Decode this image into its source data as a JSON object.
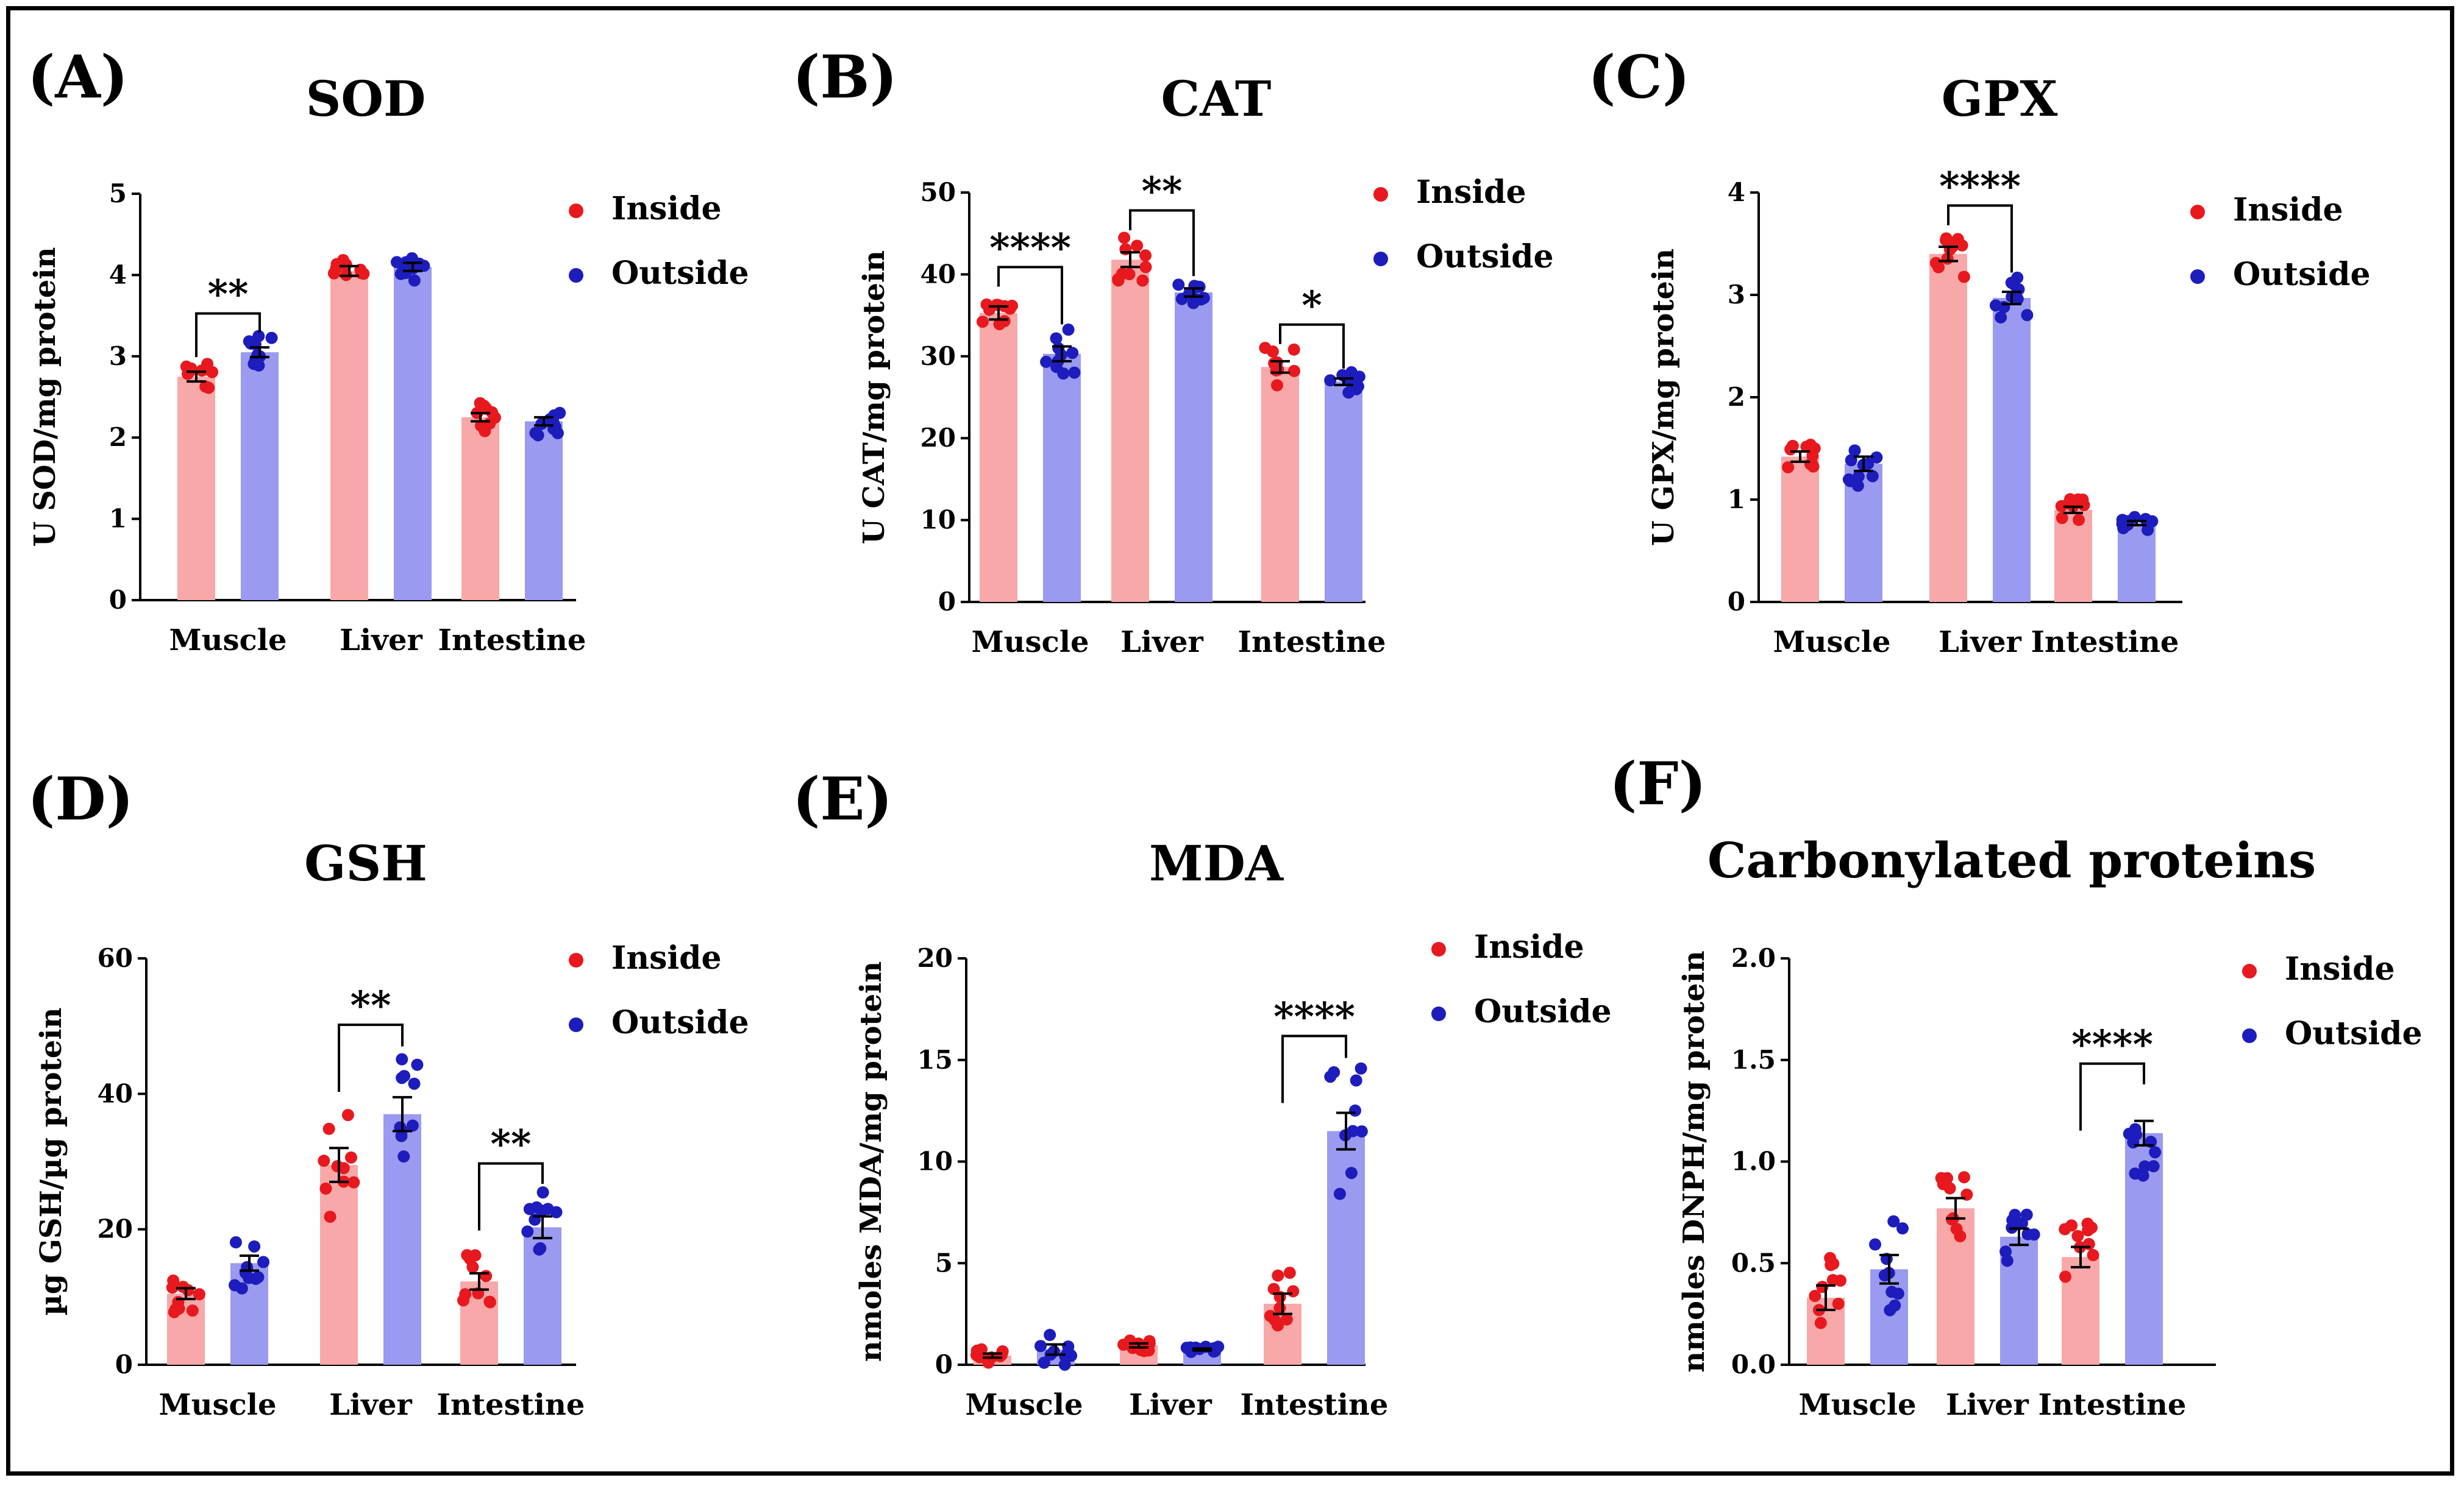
{
  "legend": {
    "inside": "Inside",
    "outside": "Outside"
  },
  "colors": {
    "inside_bar": "#f8a8a8",
    "inside_dot": "#e8191e",
    "outside_bar": "#9a9af0",
    "outside_dot": "#1d1dbd"
  },
  "chart_data": [
    {
      "id": "A",
      "panel_label": "(A)",
      "type": "bar",
      "title": "SOD",
      "ylabel": "U SOD/mg protein",
      "ylim": [
        0,
        5
      ],
      "yticks": [
        "0",
        "1",
        "2",
        "3",
        "4",
        "5"
      ],
      "categories": [
        "Muscle",
        "Liver",
        "Intestine"
      ],
      "series": [
        {
          "name": "Inside",
          "values": [
            2.75,
            4.05,
            2.25
          ],
          "sem": [
            0.06,
            0.06,
            0.05
          ]
        },
        {
          "name": "Outside",
          "values": [
            3.05,
            4.1,
            2.2
          ],
          "sem": [
            0.06,
            0.05,
            0.05
          ]
        }
      ],
      "significance": [
        {
          "category": "Muscle",
          "label": "**"
        }
      ]
    },
    {
      "id": "B",
      "panel_label": "(B)",
      "type": "bar",
      "title": "CAT",
      "ylabel": "U CAT/mg protein",
      "ylim": [
        0,
        50
      ],
      "yticks": [
        "0",
        "10",
        "20",
        "30",
        "40",
        "50"
      ],
      "categories": [
        "Muscle",
        "Liver",
        "Intestine"
      ],
      "series": [
        {
          "name": "Inside",
          "values": [
            35.3,
            41.8,
            28.7
          ],
          "sem": [
            0.8,
            0.9,
            0.7
          ]
        },
        {
          "name": "Outside",
          "values": [
            30.3,
            37.8,
            26.9
          ],
          "sem": [
            0.9,
            0.5,
            0.4
          ]
        }
      ],
      "significance": [
        {
          "category": "Muscle",
          "label": "****"
        },
        {
          "category": "Liver",
          "label": "**"
        },
        {
          "category": "Intestine",
          "label": "*"
        }
      ]
    },
    {
      "id": "C",
      "panel_label": "(C)",
      "type": "bar",
      "title": "GPX",
      "ylabel": "U GPX/mg protein",
      "ylim": [
        0,
        4
      ],
      "yticks": [
        "0",
        "1",
        "2",
        "3",
        "4"
      ],
      "categories": [
        "Muscle",
        "Liver",
        "Intestine"
      ],
      "series": [
        {
          "name": "Inside",
          "values": [
            1.42,
            3.4,
            0.9
          ],
          "sem": [
            0.05,
            0.07,
            0.03
          ]
        },
        {
          "name": "Outside",
          "values": [
            1.35,
            2.97,
            0.77
          ],
          "sem": [
            0.07,
            0.06,
            0.02
          ]
        }
      ],
      "significance": [
        {
          "category": "Liver",
          "label": "****"
        }
      ]
    },
    {
      "id": "D",
      "panel_label": "(D)",
      "type": "bar",
      "title": "GSH",
      "ylabel": "µg GSH/µg protein",
      "ylim": [
        0,
        60
      ],
      "yticks": [
        "0",
        "20",
        "40",
        "60"
      ],
      "categories": [
        "Muscle",
        "Liver",
        "Intestine"
      ],
      "series": [
        {
          "name": "Inside",
          "values": [
            10.5,
            29.5,
            12.3
          ],
          "sem": [
            0.8,
            2.5,
            1.2
          ]
        },
        {
          "name": "Outside",
          "values": [
            15,
            37,
            20.3
          ],
          "sem": [
            1.1,
            2.5,
            1.6
          ]
        }
      ],
      "significance": [
        {
          "category": "Liver",
          "label": "**"
        },
        {
          "category": "Intestine",
          "label": "**"
        }
      ]
    },
    {
      "id": "E",
      "panel_label": "(E)",
      "type": "bar",
      "title": "MDA",
      "ylabel": "nmoles MDA/mg protein",
      "ylim": [
        0,
        20
      ],
      "yticks": [
        "0",
        "5",
        "10",
        "15",
        "20"
      ],
      "categories": [
        "Muscle",
        "Liver",
        "Intestine"
      ],
      "series": [
        {
          "name": "Inside",
          "values": [
            0.45,
            0.95,
            3.0
          ],
          "sem": [
            0.1,
            0.1,
            0.5
          ]
        },
        {
          "name": "Outside",
          "values": [
            0.75,
            0.75,
            11.5
          ],
          "sem": [
            0.25,
            0.05,
            0.9
          ]
        }
      ],
      "significance": [
        {
          "category": "Intestine",
          "label": "****"
        }
      ]
    },
    {
      "id": "F",
      "panel_label": "(F)",
      "type": "bar",
      "title": "Carbonylated proteins",
      "ylabel": "nmoles DNPH/mg protein",
      "ylim": [
        0,
        2
      ],
      "yticks": [
        "0.0",
        "0.5",
        "1.0",
        "1.5",
        "2.0"
      ],
      "categories": [
        "Muscle",
        "Liver",
        "Intestine"
      ],
      "series": [
        {
          "name": "Inside",
          "values": [
            0.33,
            0.77,
            0.53
          ],
          "sem": [
            0.06,
            0.05,
            0.05
          ]
        },
        {
          "name": "Outside",
          "values": [
            0.47,
            0.63,
            1.14
          ],
          "sem": [
            0.07,
            0.04,
            0.06
          ]
        }
      ],
      "significance": [
        {
          "category": "Intestine",
          "label": "****"
        }
      ]
    }
  ]
}
